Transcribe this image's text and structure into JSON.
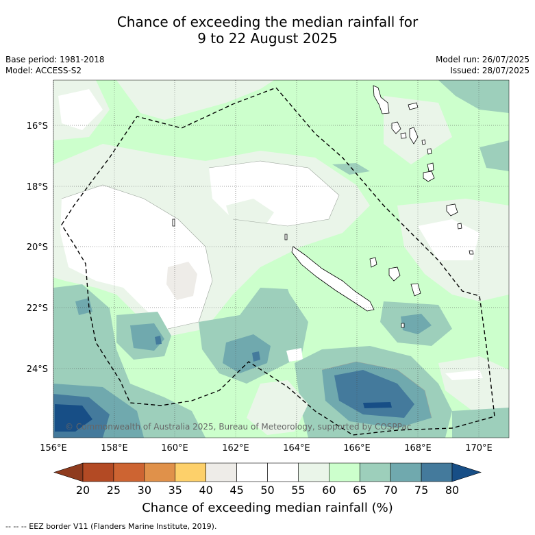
{
  "title_line1": "Chance of exceeding the median rainfall for",
  "title_line2": "9 to 22 August 2025",
  "base_period": "Base period: 1981-2018",
  "model": "Model: ACCESS-S2",
  "model_run": "Model run: 26/07/2025",
  "issued": "Issued: 28/07/2025",
  "copyright": "© Commonwealth of Australia 2025, Bureau of Meteorology, supported by COSPPac",
  "lat_labels": [
    "16°S",
    "18°S",
    "20°S",
    "22°S",
    "24°S"
  ],
  "lon_labels": [
    "156°E",
    "158°E",
    "160°E",
    "162°E",
    "164°E",
    "166°E",
    "168°E",
    "170°E"
  ],
  "colorbar": {
    "ticks": [
      "20",
      "25",
      "30",
      "35",
      "40",
      "45",
      "50",
      "55",
      "60",
      "65",
      "70",
      "75",
      "80"
    ],
    "colors": [
      "#b34a24",
      "#cd6432",
      "#e0914a",
      "#fdd06a",
      "#eeece8",
      "#ffffff",
      "#ffffff",
      "#eaf5e9",
      "#ccffcc",
      "#9dcfbb",
      "#70a9ae",
      "#447a9c"
    ],
    "low_extend_color": "#8f3b1e",
    "high_extend_color": "#174e86",
    "label": "Chance of exceeding median rainfall (%)"
  },
  "footnote": "-- -- -- EEZ border V11 (Flanders Marine Institute, 2019)."
}
